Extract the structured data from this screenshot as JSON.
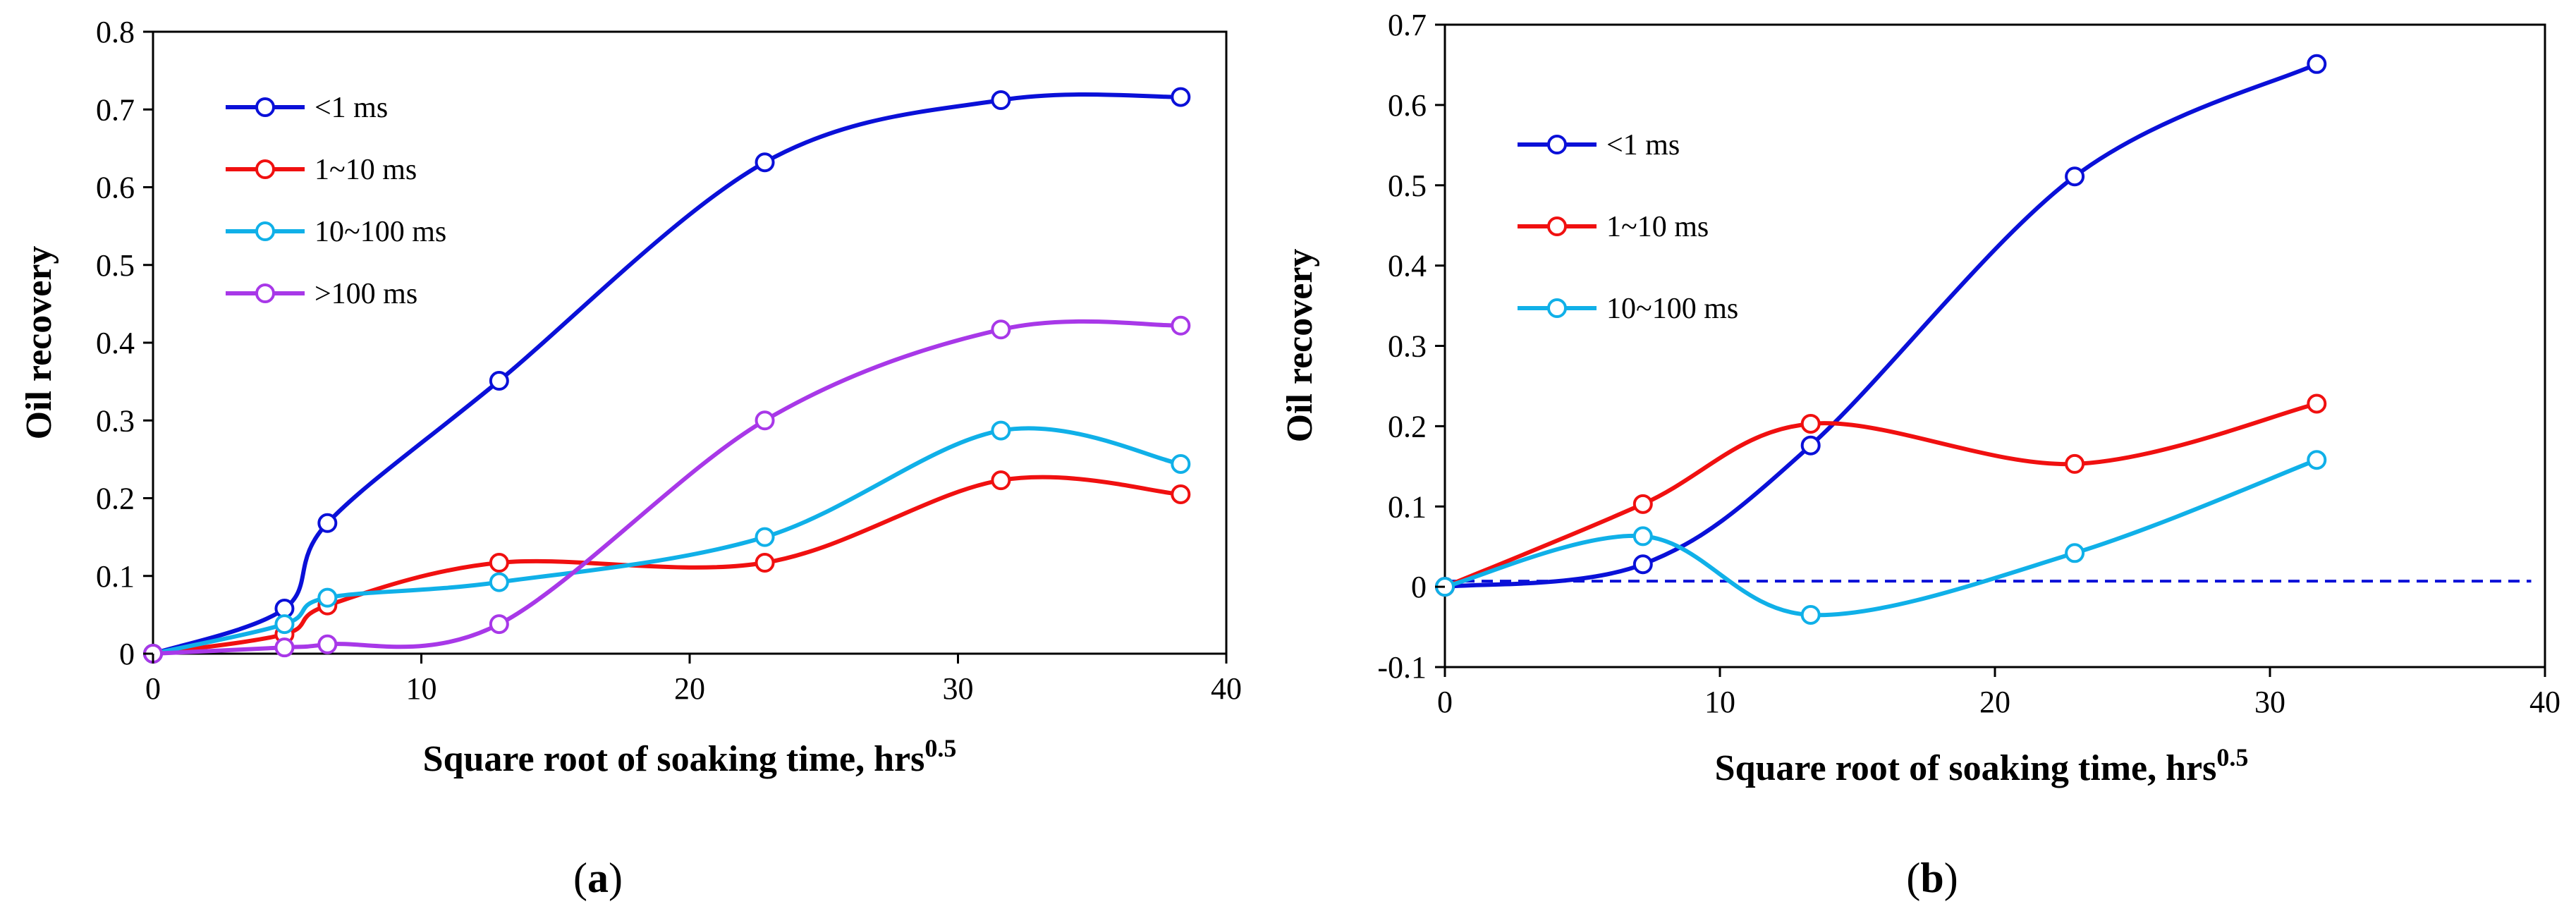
{
  "chart_data": [
    {
      "type": "line",
      "panel_label_open": "(",
      "panel_label_letter": "a",
      "panel_label_close": ")",
      "xlabel": "Square root of soaking time, hrs",
      "xlabel_sup": "0.5",
      "ylabel": "Oil recovery",
      "xlim": [
        0,
        40
      ],
      "ylim": [
        0,
        0.8
      ],
      "xticks": [
        "0",
        "10",
        "20",
        "30",
        "40"
      ],
      "yticks": [
        "0",
        "0.1",
        "0.2",
        "0.3",
        "0.4",
        "0.5",
        "0.6",
        "0.7",
        "0.8"
      ],
      "legend_position": "top-left",
      "baseline": null,
      "series": [
        {
          "name": "<1 ms",
          "color": "#0a10d8",
          "x": [
            0,
            4.9,
            6.5,
            12.9,
            22.8,
            31.6,
            38.3
          ],
          "y": [
            0,
            0.058,
            0.168,
            0.351,
            0.632,
            0.712,
            0.716
          ]
        },
        {
          "name": "1~10 ms",
          "color": "#f01010",
          "x": [
            0,
            4.9,
            6.5,
            12.9,
            22.8,
            31.6,
            38.3
          ],
          "y": [
            0,
            0.025,
            0.062,
            0.117,
            0.117,
            0.223,
            0.205
          ]
        },
        {
          "name": "10~100 ms",
          "color": "#10b0e8",
          "x": [
            0,
            4.9,
            6.5,
            12.9,
            22.8,
            31.6,
            38.3
          ],
          "y": [
            0,
            0.038,
            0.072,
            0.092,
            0.15,
            0.287,
            0.244
          ]
        },
        {
          "name": ">100 ms",
          "color": "#a838e8",
          "x": [
            0,
            4.9,
            6.5,
            12.9,
            22.8,
            31.6,
            38.3
          ],
          "y": [
            0,
            0.008,
            0.012,
            0.038,
            0.3,
            0.417,
            0.422
          ]
        }
      ]
    },
    {
      "type": "line",
      "panel_label_open": "(",
      "panel_label_letter": "b",
      "panel_label_close": ")",
      "xlabel": "Square root of soaking time, hrs",
      "xlabel_sup": "0.5",
      "ylabel": "Oil recovery",
      "xlim": [
        0,
        40
      ],
      "ylim": [
        -0.1,
        0.7
      ],
      "xticks": [
        "0",
        "10",
        "20",
        "30",
        "40"
      ],
      "yticks": [
        "-0.1",
        "0",
        "0.1",
        "0.2",
        "0.3",
        "0.4",
        "0.5",
        "0.6",
        "0.7"
      ],
      "legend_position": "top-left",
      "baseline": {
        "y": 0.007,
        "x_start": 0,
        "x_end": 39.5,
        "color": "#0a10d8",
        "style": "dashed"
      },
      "series": [
        {
          "name": "<1 ms",
          "color": "#0a10d8",
          "x": [
            0,
            7.2,
            13.3,
            22.9,
            31.7
          ],
          "y": [
            0,
            0.028,
            0.176,
            0.511,
            0.651
          ]
        },
        {
          "name": "1~10 ms",
          "color": "#f01010",
          "x": [
            0,
            7.2,
            13.3,
            22.9,
            31.7
          ],
          "y": [
            0,
            0.103,
            0.203,
            0.153,
            0.228
          ]
        },
        {
          "name": "10~100 ms",
          "color": "#10b0e8",
          "x": [
            0,
            7.2,
            13.3,
            22.9,
            31.7
          ],
          "y": [
            0,
            0.063,
            -0.035,
            0.042,
            0.158
          ]
        }
      ]
    }
  ]
}
